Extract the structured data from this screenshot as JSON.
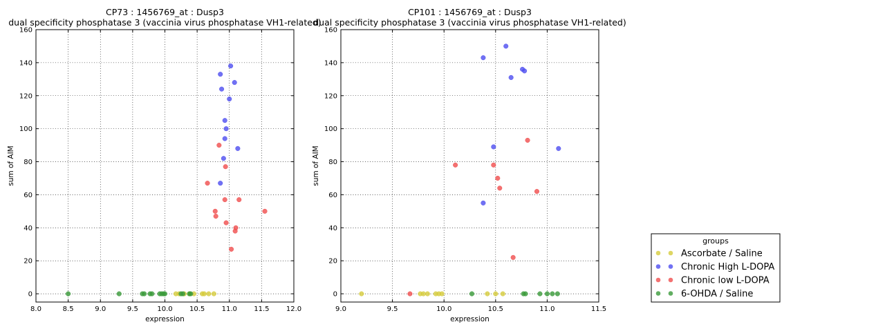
{
  "legend": {
    "title": "groups",
    "placement": "lower-right",
    "entries": [
      {
        "name": "Ascorbate / Saline",
        "color": "#d6cc3c"
      },
      {
        "name": "Chronic High L-DOPA",
        "color": "#4d4df0"
      },
      {
        "name": "Chronic low L-DOPA",
        "color": "#f04d4d"
      },
      {
        "name": "6-OHDA / Saline",
        "color": "#3a9a3a"
      }
    ]
  },
  "chart_data": [
    {
      "type": "scatter",
      "title": "CP73 : 1456769_at : Dusp3",
      "subtitle": "dual specificity phosphatase 3 (vaccinia virus phosphatase VH1-related)",
      "xlabel": "expression",
      "ylabel": "sum of AIM",
      "xlim": [
        8.0,
        12.0
      ],
      "ylim": [
        -5,
        160
      ],
      "xticks": [
        "8.0",
        "8.5",
        "9.0",
        "9.5",
        "10.0",
        "10.5",
        "11.0",
        "11.5",
        "12.0"
      ],
      "xtick_values": [
        8.0,
        8.5,
        9.0,
        9.5,
        10.0,
        10.5,
        11.0,
        11.5,
        12.0
      ],
      "yticks": [
        "0",
        "20",
        "40",
        "60",
        "80",
        "100",
        "120",
        "140",
        "160"
      ],
      "ytick_values": [
        0,
        20,
        40,
        60,
        80,
        100,
        120,
        140,
        160
      ],
      "grid": true,
      "series": [
        {
          "name": "Ascorbate / Saline",
          "points": [
            [
              10.17,
              0
            ],
            [
              10.22,
              0
            ],
            [
              10.3,
              0
            ],
            [
              10.38,
              0
            ],
            [
              10.45,
              0
            ],
            [
              10.58,
              0
            ],
            [
              10.61,
              0
            ],
            [
              10.68,
              0
            ],
            [
              10.76,
              0
            ]
          ]
        },
        {
          "name": "Chronic High L-DOPA",
          "points": [
            [
              11.02,
              138
            ],
            [
              10.86,
              133
            ],
            [
              11.08,
              128
            ],
            [
              10.88,
              124
            ],
            [
              11.0,
              118
            ],
            [
              10.93,
              105
            ],
            [
              10.95,
              100
            ],
            [
              10.93,
              94
            ],
            [
              11.13,
              88
            ],
            [
              10.91,
              82
            ],
            [
              10.86,
              67
            ]
          ]
        },
        {
          "name": "Chronic low L-DOPA",
          "points": [
            [
              10.84,
              90
            ],
            [
              10.94,
              77
            ],
            [
              10.66,
              67
            ],
            [
              11.15,
              57
            ],
            [
              10.93,
              57
            ],
            [
              10.78,
              50
            ],
            [
              11.55,
              50
            ],
            [
              10.79,
              47
            ],
            [
              10.95,
              43
            ],
            [
              11.1,
              40
            ],
            [
              11.09,
              38
            ],
            [
              11.03,
              27
            ]
          ]
        },
        {
          "name": "6-OHDA / Saline",
          "points": [
            [
              8.5,
              0
            ],
            [
              9.29,
              0
            ],
            [
              9.65,
              0
            ],
            [
              9.68,
              0
            ],
            [
              9.77,
              0
            ],
            [
              9.8,
              0
            ],
            [
              9.92,
              0
            ],
            [
              9.95,
              0
            ],
            [
              9.98,
              0
            ],
            [
              10.0,
              0
            ],
            [
              10.25,
              0
            ],
            [
              10.28,
              0
            ],
            [
              10.38,
              0
            ],
            [
              10.4,
              0
            ]
          ]
        }
      ]
    },
    {
      "type": "scatter",
      "title": "CP101 : 1456769_at : Dusp3",
      "subtitle": "dual specificity phosphatase 3 (vaccinia virus phosphatase VH1-related)",
      "xlabel": "expression",
      "ylabel": "sum of AIM",
      "xlim": [
        9.0,
        11.5
      ],
      "ylim": [
        -5,
        160
      ],
      "xticks": [
        "9.0",
        "9.5",
        "10.0",
        "10.5",
        "11.0",
        "11.5"
      ],
      "xtick_values": [
        9.0,
        9.5,
        10.0,
        10.5,
        11.0,
        11.5
      ],
      "yticks": [
        "0",
        "20",
        "40",
        "60",
        "80",
        "100",
        "120",
        "140",
        "160"
      ],
      "ytick_values": [
        0,
        20,
        40,
        60,
        80,
        100,
        120,
        140,
        160
      ],
      "grid": true,
      "series": [
        {
          "name": "Ascorbate / Saline",
          "points": [
            [
              9.2,
              0
            ],
            [
              9.77,
              0
            ],
            [
              9.8,
              0
            ],
            [
              9.84,
              0
            ],
            [
              9.92,
              0
            ],
            [
              9.95,
              0
            ],
            [
              9.98,
              0
            ],
            [
              10.42,
              0
            ],
            [
              10.5,
              0
            ],
            [
              10.57,
              0
            ]
          ]
        },
        {
          "name": "Chronic High L-DOPA",
          "points": [
            [
              10.6,
              150
            ],
            [
              10.38,
              143
            ],
            [
              10.65,
              131
            ],
            [
              10.76,
              136
            ],
            [
              10.78,
              135
            ],
            [
              10.48,
              89
            ],
            [
              11.11,
              88
            ],
            [
              10.38,
              55
            ]
          ]
        },
        {
          "name": "Chronic low L-DOPA",
          "points": [
            [
              10.81,
              93
            ],
            [
              10.11,
              78
            ],
            [
              10.48,
              78
            ],
            [
              10.52,
              70
            ],
            [
              10.54,
              64
            ],
            [
              10.9,
              62
            ],
            [
              10.67,
              22
            ],
            [
              9.67,
              0
            ]
          ]
        },
        {
          "name": "6-OHDA / Saline",
          "points": [
            [
              10.27,
              0
            ],
            [
              10.77,
              0
            ],
            [
              10.79,
              0
            ],
            [
              10.93,
              0
            ],
            [
              11.0,
              0
            ],
            [
              11.05,
              0
            ],
            [
              11.1,
              0
            ]
          ]
        }
      ]
    }
  ]
}
